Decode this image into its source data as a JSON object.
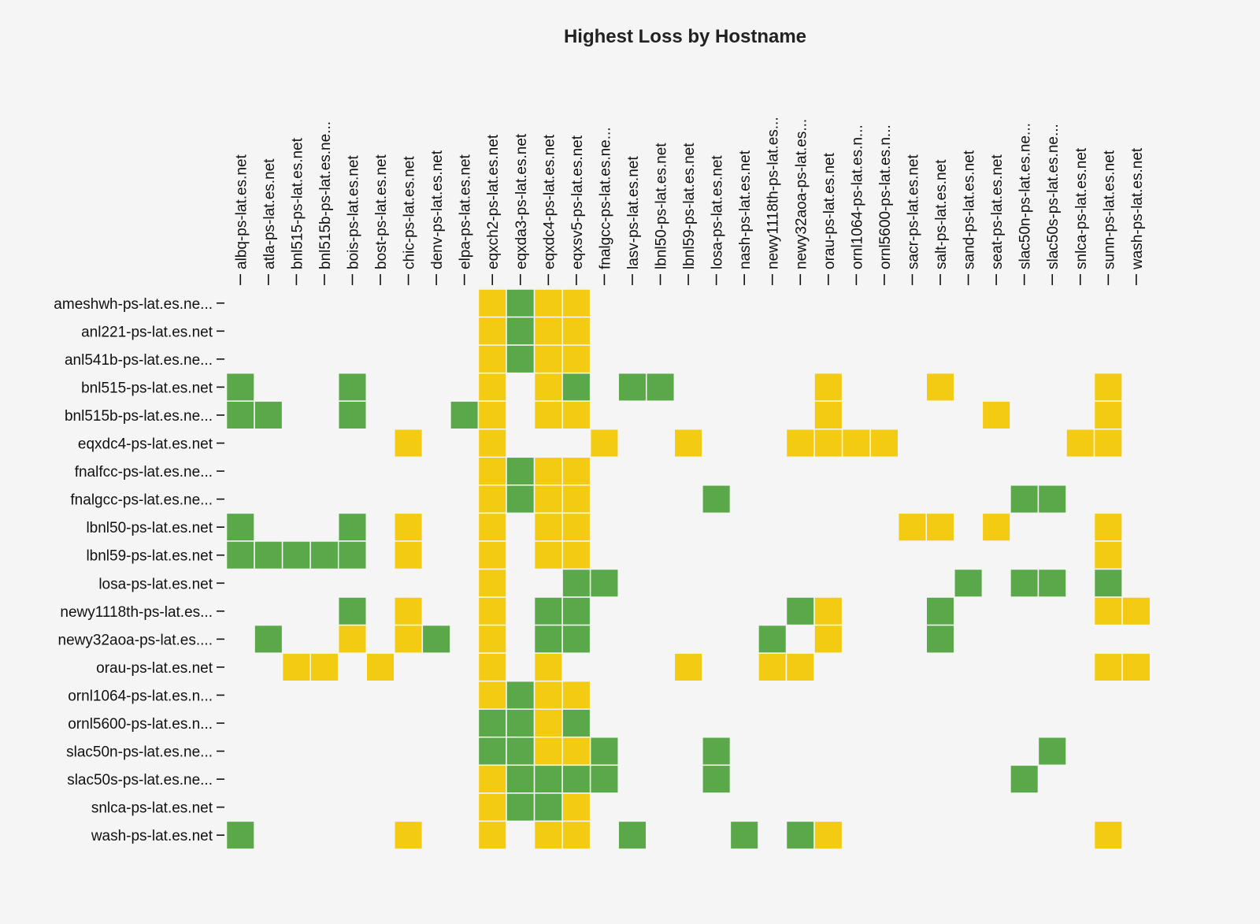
{
  "chart_data": {
    "type": "heatmap",
    "title": "Highest Loss by Hostname",
    "colors": {
      "green": "#5aa84a",
      "yellow": "#f2cb12"
    },
    "columns": [
      "albq-ps-lat.es.net",
      "atla-ps-lat.es.net",
      "bnl515-ps-lat.es.net",
      "bnl515b-ps-lat.es.ne...",
      "bois-ps-lat.es.net",
      "bost-ps-lat.es.net",
      "chic-ps-lat.es.net",
      "denv-ps-lat.es.net",
      "elpa-ps-lat.es.net",
      "eqxch2-ps-lat.es.net",
      "eqxda3-ps-lat.es.net",
      "eqxdc4-ps-lat.es.net",
      "eqxsv5-ps-lat.es.net",
      "fnalgcc-ps-lat.es.ne...",
      "lasv-ps-lat.es.net",
      "lbnl50-ps-lat.es.net",
      "lbnl59-ps-lat.es.net",
      "losa-ps-lat.es.net",
      "nash-ps-lat.es.net",
      "newy1118th-ps-lat.es...",
      "newy32aoa-ps-lat.es...",
      "orau-ps-lat.es.net",
      "ornl1064-ps-lat.es.n...",
      "ornl5600-ps-lat.es.n...",
      "sacr-ps-lat.es.net",
      "salt-ps-lat.es.net",
      "sand-ps-lat.es.net",
      "seat-ps-lat.es.net",
      "slac50n-ps-lat.es.ne...",
      "slac50s-ps-lat.es.ne...",
      "snlca-ps-lat.es.net",
      "sunn-ps-lat.es.net",
      "wash-ps-lat.es.net"
    ],
    "rows": [
      {
        "label": "ameshwh-ps-lat.es.ne...",
        "cells": [
          [
            9,
            "Y"
          ],
          [
            10,
            "G"
          ],
          [
            11,
            "Y"
          ],
          [
            12,
            "Y"
          ]
        ]
      },
      {
        "label": "anl221-ps-lat.es.net",
        "cells": [
          [
            9,
            "Y"
          ],
          [
            10,
            "G"
          ],
          [
            11,
            "Y"
          ],
          [
            12,
            "Y"
          ]
        ]
      },
      {
        "label": "anl541b-ps-lat.es.ne...",
        "cells": [
          [
            9,
            "Y"
          ],
          [
            10,
            "G"
          ],
          [
            11,
            "Y"
          ],
          [
            12,
            "Y"
          ]
        ]
      },
      {
        "label": "bnl515-ps-lat.es.net",
        "cells": [
          [
            0,
            "G"
          ],
          [
            4,
            "G"
          ],
          [
            9,
            "Y"
          ],
          [
            11,
            "Y"
          ],
          [
            12,
            "G"
          ],
          [
            14,
            "G"
          ],
          [
            15,
            "G"
          ],
          [
            21,
            "Y"
          ],
          [
            25,
            "Y"
          ],
          [
            31,
            "Y"
          ]
        ]
      },
      {
        "label": "bnl515b-ps-lat.es.ne...",
        "cells": [
          [
            0,
            "G"
          ],
          [
            1,
            "G"
          ],
          [
            4,
            "G"
          ],
          [
            8,
            "G"
          ],
          [
            9,
            "Y"
          ],
          [
            11,
            "Y"
          ],
          [
            12,
            "Y"
          ],
          [
            21,
            "Y"
          ],
          [
            27,
            "Y"
          ],
          [
            31,
            "Y"
          ]
        ]
      },
      {
        "label": "eqxdc4-ps-lat.es.net",
        "cells": [
          [
            6,
            "Y"
          ],
          [
            9,
            "Y"
          ],
          [
            13,
            "Y"
          ],
          [
            16,
            "Y"
          ],
          [
            20,
            "Y"
          ],
          [
            21,
            "Y"
          ],
          [
            22,
            "Y"
          ],
          [
            23,
            "Y"
          ],
          [
            30,
            "Y"
          ],
          [
            31,
            "Y"
          ]
        ]
      },
      {
        "label": "fnalfcc-ps-lat.es.ne...",
        "cells": [
          [
            9,
            "Y"
          ],
          [
            10,
            "G"
          ],
          [
            11,
            "Y"
          ],
          [
            12,
            "Y"
          ]
        ]
      },
      {
        "label": "fnalgcc-ps-lat.es.ne...",
        "cells": [
          [
            9,
            "Y"
          ],
          [
            10,
            "G"
          ],
          [
            11,
            "Y"
          ],
          [
            12,
            "Y"
          ],
          [
            17,
            "G"
          ],
          [
            28,
            "G"
          ],
          [
            29,
            "G"
          ]
        ]
      },
      {
        "label": "lbnl50-ps-lat.es.net",
        "cells": [
          [
            0,
            "G"
          ],
          [
            4,
            "G"
          ],
          [
            6,
            "Y"
          ],
          [
            9,
            "Y"
          ],
          [
            11,
            "Y"
          ],
          [
            12,
            "Y"
          ],
          [
            24,
            "Y"
          ],
          [
            25,
            "Y"
          ],
          [
            27,
            "Y"
          ],
          [
            31,
            "Y"
          ]
        ]
      },
      {
        "label": "lbnl59-ps-lat.es.net",
        "cells": [
          [
            0,
            "G"
          ],
          [
            1,
            "G"
          ],
          [
            2,
            "G"
          ],
          [
            3,
            "G"
          ],
          [
            4,
            "G"
          ],
          [
            6,
            "Y"
          ],
          [
            9,
            "Y"
          ],
          [
            11,
            "Y"
          ],
          [
            12,
            "Y"
          ],
          [
            31,
            "Y"
          ]
        ]
      },
      {
        "label": "losa-ps-lat.es.net",
        "cells": [
          [
            9,
            "Y"
          ],
          [
            12,
            "G"
          ],
          [
            13,
            "G"
          ],
          [
            26,
            "G"
          ],
          [
            28,
            "G"
          ],
          [
            29,
            "G"
          ],
          [
            31,
            "G"
          ]
        ]
      },
      {
        "label": "newy1118th-ps-lat.es...",
        "cells": [
          [
            4,
            "G"
          ],
          [
            6,
            "Y"
          ],
          [
            9,
            "Y"
          ],
          [
            11,
            "G"
          ],
          [
            12,
            "G"
          ],
          [
            20,
            "G"
          ],
          [
            21,
            "Y"
          ],
          [
            25,
            "G"
          ],
          [
            31,
            "Y"
          ],
          [
            32,
            "Y"
          ]
        ]
      },
      {
        "label": "newy32aoa-ps-lat.es....",
        "cells": [
          [
            1,
            "G"
          ],
          [
            4,
            "Y"
          ],
          [
            6,
            "Y"
          ],
          [
            7,
            "G"
          ],
          [
            9,
            "Y"
          ],
          [
            11,
            "G"
          ],
          [
            12,
            "G"
          ],
          [
            19,
            "G"
          ],
          [
            21,
            "Y"
          ],
          [
            25,
            "G"
          ]
        ]
      },
      {
        "label": "orau-ps-lat.es.net",
        "cells": [
          [
            2,
            "Y"
          ],
          [
            3,
            "Y"
          ],
          [
            5,
            "Y"
          ],
          [
            9,
            "Y"
          ],
          [
            11,
            "Y"
          ],
          [
            16,
            "Y"
          ],
          [
            19,
            "Y"
          ],
          [
            20,
            "Y"
          ],
          [
            31,
            "Y"
          ],
          [
            32,
            "Y"
          ]
        ]
      },
      {
        "label": "ornl1064-ps-lat.es.n...",
        "cells": [
          [
            9,
            "Y"
          ],
          [
            10,
            "G"
          ],
          [
            11,
            "Y"
          ],
          [
            12,
            "Y"
          ]
        ]
      },
      {
        "label": "ornl5600-ps-lat.es.n...",
        "cells": [
          [
            9,
            "G"
          ],
          [
            10,
            "G"
          ],
          [
            11,
            "Y"
          ],
          [
            12,
            "G"
          ]
        ]
      },
      {
        "label": "slac50n-ps-lat.es.ne...",
        "cells": [
          [
            9,
            "G"
          ],
          [
            10,
            "G"
          ],
          [
            11,
            "Y"
          ],
          [
            12,
            "Y"
          ],
          [
            13,
            "G"
          ],
          [
            17,
            "G"
          ],
          [
            29,
            "G"
          ]
        ]
      },
      {
        "label": "slac50s-ps-lat.es.ne...",
        "cells": [
          [
            9,
            "Y"
          ],
          [
            10,
            "G"
          ],
          [
            11,
            "G"
          ],
          [
            12,
            "G"
          ],
          [
            13,
            "G"
          ],
          [
            17,
            "G"
          ],
          [
            28,
            "G"
          ]
        ]
      },
      {
        "label": "snlca-ps-lat.es.net",
        "cells": [
          [
            9,
            "Y"
          ],
          [
            10,
            "G"
          ],
          [
            11,
            "G"
          ],
          [
            12,
            "Y"
          ]
        ]
      },
      {
        "label": "wash-ps-lat.es.net",
        "cells": [
          [
            0,
            "G"
          ],
          [
            6,
            "Y"
          ],
          [
            9,
            "Y"
          ],
          [
            11,
            "Y"
          ],
          [
            12,
            "Y"
          ],
          [
            14,
            "G"
          ],
          [
            18,
            "G"
          ],
          [
            20,
            "G"
          ],
          [
            21,
            "Y"
          ],
          [
            31,
            "Y"
          ]
        ]
      }
    ]
  }
}
